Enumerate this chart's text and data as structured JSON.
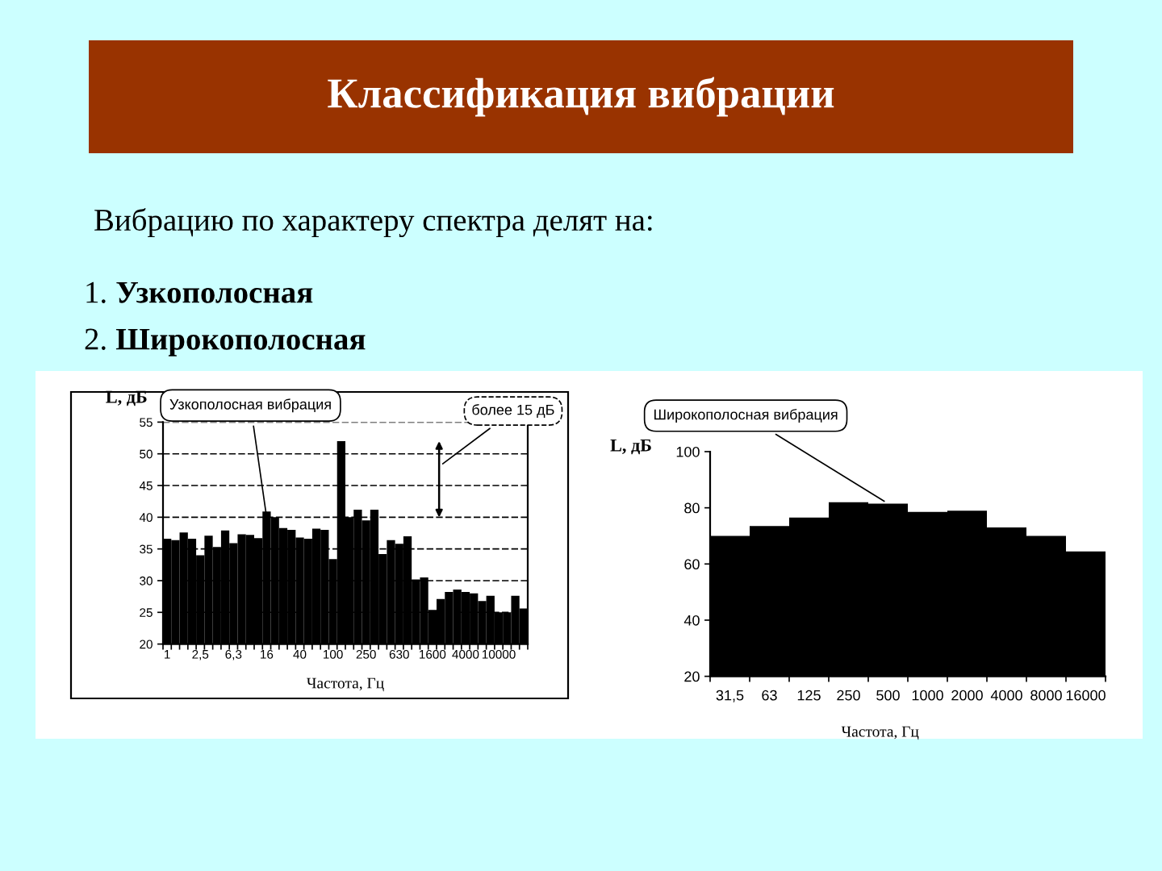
{
  "chart_data": [
    {
      "type": "other",
      "title": "Классификация вибрации",
      "annotations": [
        "Вибрацию по характеру спектра делят на:",
        "1. Узкополосная",
        "2. Широкополосная"
      ]
    },
    {
      "type": "bar",
      "xlabel": "Частота, Гц",
      "ylabel": "L, дБ",
      "categories": [
        "1",
        null,
        null,
        null,
        "2,5",
        null,
        null,
        null,
        "6,3",
        null,
        null,
        null,
        "16",
        null,
        null,
        null,
        "40",
        null,
        null,
        null,
        "100",
        null,
        null,
        null,
        "250",
        null,
        null,
        null,
        "630",
        null,
        null,
        null,
        "1600",
        null,
        null,
        null,
        "4000",
        null,
        null,
        null,
        "10000",
        null,
        null,
        null
      ],
      "values": [
        36.6,
        36.4,
        37.6,
        36.6,
        34.0,
        37.1,
        35.3,
        37.9,
        35.9,
        37.3,
        37.2,
        36.7,
        40.9,
        40.0,
        38.3,
        38.0,
        36.8,
        36.6,
        38.2,
        38.0,
        33.4,
        52.0,
        40.0,
        41.2,
        39.5,
        41.2,
        34.2,
        36.4,
        35.8,
        37.0,
        30.2,
        30.5,
        25.4,
        27.1,
        28.2,
        28.6,
        28.2,
        28.0,
        26.8,
        27.6,
        25.0,
        25.0,
        27.6,
        25.6
      ],
      "color": "#000000",
      "ylim": [
        20,
        55
      ],
      "yticks": [
        20,
        25,
        30,
        35,
        40,
        45,
        50,
        55
      ],
      "grid": "y",
      "annotations": [
        {
          "text": "Узкополосная вибрация",
          "x": "16",
          "y": 40
        },
        "более 15 дБ"
      ]
    },
    {
      "type": "bar",
      "xlabel": "Частота, Гц",
      "ylabel": "L, дБ",
      "categories": [
        "31,5",
        "63",
        "125",
        "250",
        "500",
        "1000",
        "2000",
        "4000",
        "8000",
        "16000"
      ],
      "values": [
        70,
        73.5,
        76.5,
        82,
        81.5,
        78.5,
        79,
        73,
        70,
        64.5
      ],
      "color": "#000000",
      "ylim": [
        20,
        100
      ],
      "yticks": [
        20,
        40,
        60,
        80,
        100
      ],
      "annotations": [
        {
          "text": "Широкополосная вибрация",
          "x": "500",
          "y": 81.5
        }
      ]
    }
  ]
}
